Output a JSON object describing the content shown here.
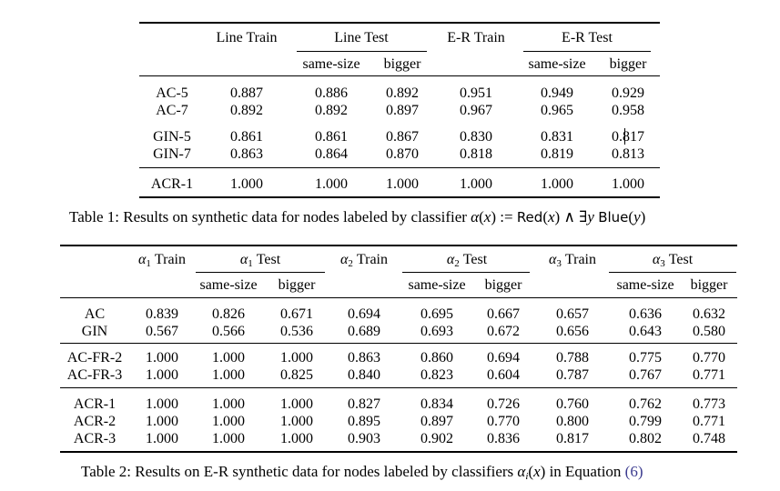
{
  "table1": {
    "headers": [
      "Line Train",
      "Line Test",
      "E-R Train",
      "E-R Test"
    ],
    "subheaders": [
      "same-size",
      "bigger",
      "same-size",
      "bigger"
    ],
    "groups": [
      [
        {
          "label": "AC-5",
          "values": [
            "0.887",
            "0.886",
            "0.892",
            "0.951",
            "0.949",
            "0.929"
          ]
        },
        {
          "label": "AC-7",
          "values": [
            "0.892",
            "0.892",
            "0.897",
            "0.967",
            "0.965",
            "0.958"
          ]
        }
      ],
      [
        {
          "label": "GIN-5",
          "values": [
            "0.861",
            "0.861",
            "0.867",
            "0.830",
            "0.831",
            "0.817"
          ]
        },
        {
          "label": "GIN-7",
          "values": [
            "0.863",
            "0.864",
            "0.870",
            "0.818",
            "0.819",
            "0.813"
          ]
        }
      ],
      [
        {
          "label": "ACR-1",
          "values": [
            "1.000",
            "1.000",
            "1.000",
            "1.000",
            "1.000",
            "1.000"
          ]
        }
      ]
    ],
    "caption": {
      "prefix": "Table 1: Results on synthetic data for nodes labeled by classifier ",
      "alpha": "α",
      "x": "x",
      "assign": ":=",
      "red": "Red",
      "and": "∧",
      "exists": "∃",
      "y": "y",
      "blue": "Blue"
    }
  },
  "table2": {
    "headers": [
      "Train",
      "Test",
      "Train",
      "Test",
      "Train",
      "Test"
    ],
    "header_subscripts": [
      "1",
      "1",
      "2",
      "2",
      "3",
      "3"
    ],
    "subheaders": [
      "same-size",
      "bigger",
      "same-size",
      "bigger",
      "same-size",
      "bigger"
    ],
    "groups": [
      [
        {
          "label": "AC",
          "values": [
            "0.839",
            "0.826",
            "0.671",
            "0.694",
            "0.695",
            "0.667",
            "0.657",
            "0.636",
            "0.632"
          ]
        },
        {
          "label": "GIN",
          "values": [
            "0.567",
            "0.566",
            "0.536",
            "0.689",
            "0.693",
            "0.672",
            "0.656",
            "0.643",
            "0.580"
          ]
        }
      ],
      [
        {
          "label": "AC-FR-2",
          "values": [
            "1.000",
            "1.000",
            "1.000",
            "0.863",
            "0.860",
            "0.694",
            "0.788",
            "0.775",
            "0.770"
          ]
        },
        {
          "label": "AC-FR-3",
          "values": [
            "1.000",
            "1.000",
            "0.825",
            "0.840",
            "0.823",
            "0.604",
            "0.787",
            "0.767",
            "0.771"
          ]
        }
      ],
      [
        {
          "label": "ACR-1",
          "values": [
            "1.000",
            "1.000",
            "1.000",
            "0.827",
            "0.834",
            "0.726",
            "0.760",
            "0.762",
            "0.773"
          ]
        },
        {
          "label": "ACR-2",
          "values": [
            "1.000",
            "1.000",
            "1.000",
            "0.895",
            "0.897",
            "0.770",
            "0.800",
            "0.799",
            "0.771"
          ]
        },
        {
          "label": "ACR-3",
          "values": [
            "1.000",
            "1.000",
            "1.000",
            "0.903",
            "0.902",
            "0.836",
            "0.817",
            "0.802",
            "0.748"
          ]
        }
      ]
    ],
    "caption": {
      "prefix": "Table 2: Results on E-R synthetic data for nodes labeled by classifiers ",
      "alpha": "α",
      "i": "i",
      "x": "x",
      "middle": " in Equation ",
      "ref": "(6)"
    }
  },
  "colors": {
    "text": "#000000",
    "ref_link": "#3b3b8f"
  }
}
